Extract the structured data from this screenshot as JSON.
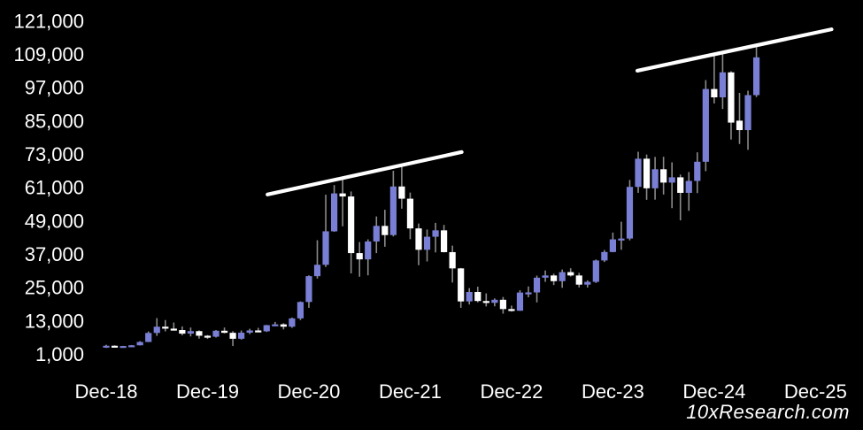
{
  "watermark": "10xResearch.com",
  "colors": {
    "background": "#000000",
    "bullish_body": "#7a7fd6",
    "bearish_body": "#ffffff",
    "wick": "#8a8a8a",
    "trendline": "#ffffff",
    "axis_text": "#ffffff"
  },
  "chart_data": {
    "type": "candlestick",
    "timeframe": "monthly",
    "grid": "off",
    "legend": "none",
    "y_axis": {
      "min": 1000,
      "max": 121000,
      "tick_values": [
        121000,
        109000,
        97000,
        85000,
        73000,
        61000,
        49000,
        37000,
        25000,
        13000,
        1000
      ],
      "tick_labels": [
        "121,000",
        "109,000",
        "97,000",
        "85,000",
        "73,000",
        "61,000",
        "49,000",
        "37,000",
        "25,000",
        "13,000",
        "1,000"
      ]
    },
    "x_axis": {
      "tick_labels": [
        "Dec-18",
        "Dec-19",
        "Dec-20",
        "Dec-21",
        "Dec-22",
        "Dec-23",
        "Dec-24",
        "Dec-25"
      ],
      "tick_month_indices": [
        0,
        12,
        24,
        36,
        48,
        60,
        72,
        84
      ]
    },
    "candle_fields": [
      "month",
      "open",
      "high",
      "low",
      "close"
    ],
    "candles": [
      [
        "Dec-18",
        3400,
        4300,
        3150,
        3950
      ],
      [
        "Jan-19",
        3950,
        4100,
        3350,
        3500
      ],
      [
        "Feb-19",
        3500,
        3900,
        3350,
        3850
      ],
      [
        "Mar-19",
        3850,
        4200,
        3750,
        4100
      ],
      [
        "Apr-19",
        4100,
        5600,
        4050,
        5300
      ],
      [
        "May-19",
        5300,
        9100,
        5250,
        8550
      ],
      [
        "Jun-19",
        8550,
        13900,
        7500,
        10800
      ],
      [
        "Jul-19",
        10800,
        13200,
        9100,
        10100
      ],
      [
        "Aug-19",
        10100,
        12300,
        9400,
        9600
      ],
      [
        "Sep-19",
        9600,
        10900,
        7700,
        8300
      ],
      [
        "Oct-19",
        8300,
        10500,
        7300,
        9200
      ],
      [
        "Nov-19",
        9200,
        9500,
        6500,
        7550
      ],
      [
        "Dec-19",
        7550,
        7800,
        6400,
        7200
      ],
      [
        "Jan-20",
        7200,
        9600,
        6900,
        9350
      ],
      [
        "Feb-20",
        9350,
        10500,
        8400,
        8600
      ],
      [
        "Mar-20",
        8600,
        9200,
        3850,
        6450
      ],
      [
        "Apr-20",
        6450,
        9450,
        6150,
        8650
      ],
      [
        "May-20",
        8650,
        10050,
        8100,
        9450
      ],
      [
        "Jun-20",
        9450,
        10400,
        8850,
        9150
      ],
      [
        "Jul-20",
        9150,
        11450,
        8900,
        11350
      ],
      [
        "Aug-20",
        11350,
        12500,
        11000,
        11650
      ],
      [
        "Sep-20",
        11650,
        12050,
        9800,
        10800
      ],
      [
        "Oct-20",
        10800,
        14100,
        10400,
        13800
      ],
      [
        "Nov-20",
        13800,
        19900,
        13200,
        19700
      ],
      [
        "Dec-20",
        19700,
        29300,
        17600,
        29000
      ],
      [
        "Jan-21",
        29000,
        41950,
        28150,
        33100
      ],
      [
        "Feb-21",
        33100,
        58350,
        32300,
        45150
      ],
      [
        "Mar-21",
        45150,
        61800,
        44950,
        58800
      ],
      [
        "Apr-21",
        58800,
        64850,
        46950,
        57700
      ],
      [
        "May-21",
        57700,
        59500,
        30000,
        37300
      ],
      [
        "Jun-21",
        37300,
        41300,
        28800,
        35050
      ],
      [
        "Jul-21",
        35050,
        42250,
        29300,
        41500
      ],
      [
        "Aug-21",
        41500,
        50500,
        37300,
        47100
      ],
      [
        "Sep-21",
        47100,
        52900,
        39600,
        43800
      ],
      [
        "Oct-21",
        43800,
        66950,
        43300,
        61300
      ],
      [
        "Nov-21",
        61300,
        69000,
        53300,
        56900
      ],
      [
        "Dec-21",
        56900,
        59100,
        42300,
        46200
      ],
      [
        "Jan-22",
        46200,
        47950,
        32950,
        38500
      ],
      [
        "Feb-22",
        38500,
        45800,
        34300,
        43200
      ],
      [
        "Mar-22",
        43200,
        48200,
        37550,
        45500
      ],
      [
        "Apr-22",
        45500,
        47450,
        37550,
        37650
      ],
      [
        "May-22",
        37650,
        40000,
        26700,
        31800
      ],
      [
        "Jun-22",
        31800,
        31950,
        17600,
        19900
      ],
      [
        "Jul-22",
        19900,
        24700,
        18800,
        23300
      ],
      [
        "Aug-22",
        23300,
        25200,
        19550,
        20050
      ],
      [
        "Sep-22",
        20050,
        22800,
        18100,
        19400
      ],
      [
        "Oct-22",
        19400,
        21000,
        18150,
        20500
      ],
      [
        "Nov-22",
        20500,
        21500,
        15500,
        17150
      ],
      [
        "Dec-22",
        17150,
        18400,
        16250,
        16550
      ],
      [
        "Jan-23",
        16550,
        23950,
        16500,
        23100
      ],
      [
        "Feb-23",
        23100,
        25300,
        21400,
        23150
      ],
      [
        "Mar-23",
        23150,
        29200,
        19550,
        28450
      ],
      [
        "Apr-23",
        28450,
        31050,
        26950,
        29250
      ],
      [
        "May-23",
        29250,
        29900,
        25800,
        27200
      ],
      [
        "Jun-23",
        27200,
        31400,
        24800,
        30450
      ],
      [
        "Jul-23",
        30450,
        31850,
        28850,
        29250
      ],
      [
        "Aug-23",
        29250,
        30200,
        24950,
        25950
      ],
      [
        "Sep-23",
        25950,
        27500,
        24900,
        26950
      ],
      [
        "Oct-23",
        26950,
        35000,
        26550,
        34650
      ],
      [
        "Nov-23",
        34650,
        38400,
        34100,
        37700
      ],
      [
        "Dec-23",
        37700,
        44700,
        37600,
        42250
      ],
      [
        "Jan-24",
        42250,
        48600,
        38500,
        42550
      ],
      [
        "Feb-24",
        42550,
        63650,
        41900,
        61150
      ],
      [
        "Mar-24",
        61150,
        73800,
        59000,
        71300
      ],
      [
        "Apr-24",
        71300,
        72800,
        56500,
        60650
      ],
      [
        "May-24",
        60650,
        71950,
        56550,
        67500
      ],
      [
        "Jun-24",
        67500,
        72000,
        58400,
        62700
      ],
      [
        "Jul-24",
        62700,
        70000,
        53500,
        64600
      ],
      [
        "Aug-24",
        64600,
        65600,
        49100,
        59000
      ],
      [
        "Sep-24",
        59000,
        66500,
        52550,
        63300
      ],
      [
        "Oct-24",
        63300,
        73600,
        58900,
        70200
      ],
      [
        "Nov-24",
        70200,
        99600,
        66800,
        96400
      ],
      [
        "Dec-24",
        96400,
        108300,
        91200,
        93400
      ],
      [
        "Jan-25",
        93400,
        109400,
        89200,
        102400
      ],
      [
        "Feb-25",
        102400,
        102800,
        78200,
        84300
      ],
      [
        "Mar-25",
        85000,
        95000,
        76600,
        81600
      ],
      [
        "Apr-25",
        81600,
        95800,
        74500,
        94200
      ],
      [
        "May-25",
        94200,
        111800,
        93500,
        107800
      ]
    ],
    "trendlines": [
      {
        "name": "resistance-line-2021-tops",
        "start_month_index": 19.1,
        "start_value": 58400,
        "end_month_index": 42.1,
        "end_value": 73700
      },
      {
        "name": "resistance-line-2025-tops",
        "start_month_index": 62.9,
        "start_value": 103000,
        "end_month_index": 85.9,
        "end_value": 117900
      }
    ]
  }
}
